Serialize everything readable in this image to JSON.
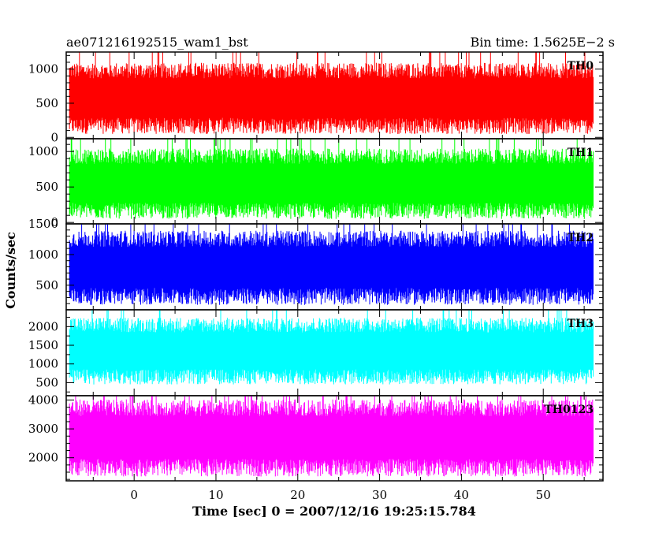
{
  "chart_data": {
    "type": "line",
    "title": "ae071216192515_wam1_bst",
    "subtitle": "Bin time: 1.5625E−2 s",
    "xlabel": "Time [sec] 0 = 2007/12/16 19:25:15.784",
    "ylabel": "Counts/sec",
    "xlim": [
      -8.3,
      57.3
    ],
    "xticks": [
      0,
      10,
      20,
      30,
      40,
      50
    ],
    "xtick_labels": [
      "0",
      "10",
      "20",
      "30",
      "40",
      "50"
    ],
    "x_range_data": [
      -7.9,
      56.1
    ],
    "panels": [
      {
        "name": "TH0",
        "color": "#ff0000",
        "ylim": [
          -20,
          1250
        ],
        "yticks": [
          0,
          500,
          1000
        ],
        "ytick_labels": [
          "0",
          "500",
          "1000"
        ],
        "base": 50,
        "peak": 1100,
        "spread": 1
      },
      {
        "name": "TH1",
        "color": "#00ff00",
        "ylim": [
          -20,
          1180
        ],
        "yticks": [
          0,
          500,
          1000
        ],
        "ytick_labels": [
          "0",
          "500",
          "1000"
        ],
        "base": 50,
        "peak": 1050,
        "spread": 1
      },
      {
        "name": "TH2",
        "color": "#0000ff",
        "ylim": [
          100,
          1500
        ],
        "yticks": [
          500,
          1000,
          1500
        ],
        "ytick_labels": [
          "500",
          "1000",
          "1500"
        ],
        "base": 180,
        "peak": 1400,
        "spread": 1
      },
      {
        "name": "TH3",
        "color": "#00ffff",
        "ylim": [
          150,
          2450
        ],
        "yticks": [
          500,
          1000,
          1500,
          2000
        ],
        "ytick_labels": [
          "500",
          "1000",
          "1500",
          "2000"
        ],
        "base": 450,
        "peak": 2250,
        "spread": 1
      },
      {
        "name": "TH0123",
        "color": "#ff00ff",
        "ylim": [
          1200,
          4150
        ],
        "yticks": [
          2000,
          3000,
          4000
        ],
        "ytick_labels": [
          "2000",
          "3000",
          "4000"
        ],
        "base": 1350,
        "peak": 4050,
        "spread": 1
      }
    ]
  }
}
